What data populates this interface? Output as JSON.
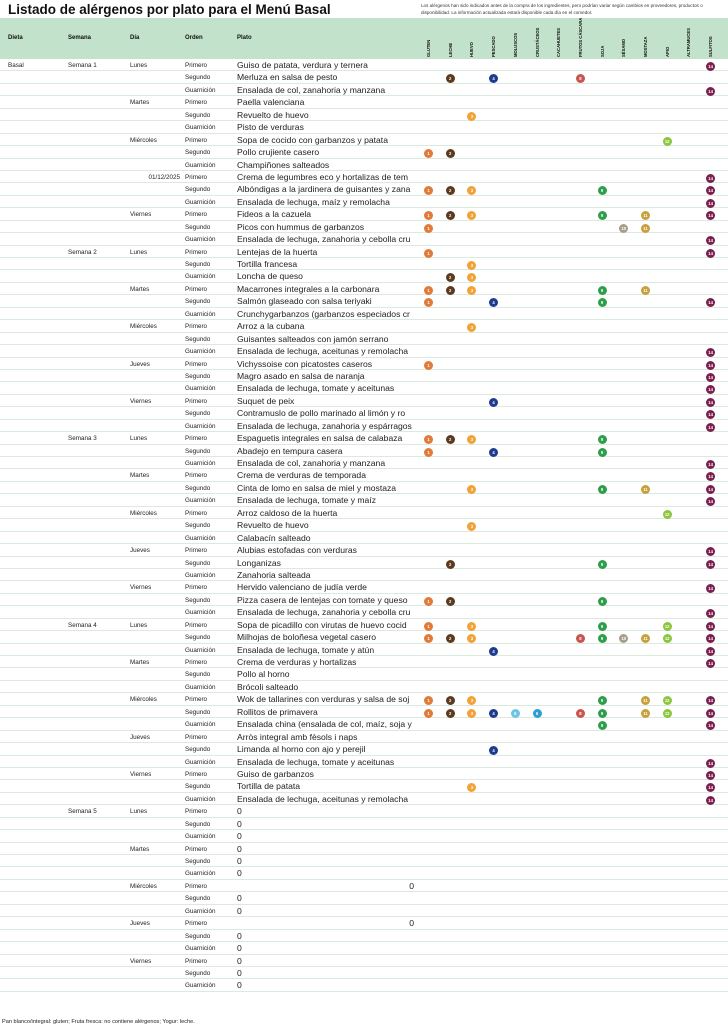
{
  "title": "Listado de alérgenos por plato para el Menú Basal",
  "note": "Los alérgenos han sido indicados antes de la compra de los ingredientes, pero podrían variar según cambios en proveedores, productos o disponibilidad. La información actualizada estará disponible cada día en el comedor.",
  "headers": {
    "dieta": "Dieta",
    "semana": "Semana",
    "dia": "Día",
    "orden": "Orden",
    "plato": "Plato"
  },
  "allergens": [
    {
      "n": 1,
      "label": "GLUTEN",
      "color": "#e07b39"
    },
    {
      "n": 2,
      "label": "LECHE",
      "color": "#5b3a1f"
    },
    {
      "n": 3,
      "label": "HUEVO",
      "color": "#f2a236"
    },
    {
      "n": 4,
      "label": "PESCADO",
      "color": "#1f3a8f"
    },
    {
      "n": 5,
      "label": "MOLUSCOS",
      "color": "#6cc5e6"
    },
    {
      "n": 6,
      "label": "CRUSTÁCEOS",
      "color": "#2a9fd8"
    },
    {
      "n": 7,
      "label": "CACAHUETES",
      "color": "#b07a44"
    },
    {
      "n": 8,
      "label": "FRUTOS CÁSCARA",
      "color": "#c9554f"
    },
    {
      "n": 9,
      "label": "SOJA",
      "color": "#2f9e4c"
    },
    {
      "n": 10,
      "label": "SÉSAMO",
      "color": "#a89f8a"
    },
    {
      "n": 11,
      "label": "MOSTAZA",
      "color": "#c7a03c"
    },
    {
      "n": 12,
      "label": "APIO",
      "color": "#8cc63f"
    },
    {
      "n": 13,
      "label": "ALTRAMUCES",
      "color": "#d18fb0"
    },
    {
      "n": 14,
      "label": "SULFITOS",
      "color": "#7a1f4e"
    }
  ],
  "dieta": "Basal",
  "rows": [
    {
      "s": "Semana 1",
      "d": "Lunes",
      "o": "Primero",
      "p": "Guiso de patata, verdura y ternera",
      "a": [
        14
      ]
    },
    {
      "o": "Segundo",
      "p": "Merluza en salsa de pesto",
      "a": [
        2,
        4,
        8
      ]
    },
    {
      "o": "Guarnición",
      "p": "Ensalada de col, zanahoria y manzana",
      "a": [
        14
      ]
    },
    {
      "d": "Martes",
      "o": "Primero",
      "p": "Paella valenciana",
      "a": []
    },
    {
      "o": "Segundo",
      "p": "Revuelto de huevo",
      "a": [
        3
      ]
    },
    {
      "o": "Guarnición",
      "p": "Pisto de verduras",
      "a": []
    },
    {
      "d": "Miércoles",
      "o": "Primero",
      "p": "Sopa de cocido con garbanzos y patata",
      "a": [
        12
      ]
    },
    {
      "o": "Segundo",
      "p": "Pollo crujiente casero",
      "a": [
        1,
        2
      ]
    },
    {
      "o": "Guarnición",
      "p": "Champiñones salteados",
      "a": []
    },
    {
      "d": "01/12/2025",
      "date": true,
      "o": "Primero",
      "p": "Crema de legumbres eco y hortalizas de tem",
      "a": [
        14
      ]
    },
    {
      "o": "Segundo",
      "p": "Albóndigas a la jardinera de guisantes y zana",
      "a": [
        1,
        2,
        3,
        9,
        14
      ]
    },
    {
      "o": "Guarnición",
      "p": "Ensalada de lechuga, maíz y remolacha",
      "a": [
        14
      ]
    },
    {
      "d": "Viernes",
      "o": "Primero",
      "p": "Fideos a la cazuela",
      "a": [
        1,
        2,
        3,
        9,
        11,
        14
      ]
    },
    {
      "o": "Segundo",
      "p": "Picos con hummus de garbanzos",
      "a": [
        1,
        10,
        11
      ]
    },
    {
      "o": "Guarnición",
      "p": "Ensalada de lechuga, zanahoria y cebolla cru",
      "a": [
        14
      ]
    },
    {
      "s": "Semana 2",
      "d": "Lunes",
      "o": "Primero",
      "p": "Lentejas de la huerta",
      "a": [
        1,
        14
      ]
    },
    {
      "o": "Segundo",
      "p": "Tortilla francesa",
      "a": [
        3
      ]
    },
    {
      "o": "Guarnición",
      "p": "Loncha de queso",
      "a": [
        2,
        3
      ]
    },
    {
      "d": "Martes",
      "o": "Primero",
      "p": "Macarrones integrales a la carbonara",
      "a": [
        1,
        2,
        3,
        9,
        11
      ]
    },
    {
      "o": "Segundo",
      "p": "Salmón glaseado con salsa teriyaki",
      "a": [
        1,
        4,
        9,
        14
      ]
    },
    {
      "o": "Guarnición",
      "p": "Crunchygarbanzos (garbanzos especiados cr",
      "a": []
    },
    {
      "d": "Miércoles",
      "o": "Primero",
      "p": "Arroz a la cubana",
      "a": [
        3
      ]
    },
    {
      "o": "Segundo",
      "p": "Guisantes salteados con jamón serrano",
      "a": []
    },
    {
      "o": "Guarnición",
      "p": "Ensalada de lechuga, aceitunas y remolacha",
      "a": [
        14
      ]
    },
    {
      "d": "Jueves",
      "o": "Primero",
      "p": "Vichyssoise con picatostes caseros",
      "a": [
        1,
        14
      ]
    },
    {
      "o": "Segundo",
      "p": "Magro asado en salsa de naranja",
      "a": [
        14
      ]
    },
    {
      "o": "Guarnición",
      "p": "Ensalada de lechuga, tomate y aceitunas",
      "a": [
        14
      ]
    },
    {
      "d": "Viernes",
      "o": "Primero",
      "p": "Suquet de peix",
      "a": [
        4,
        14
      ]
    },
    {
      "o": "Segundo",
      "p": "Contramuslo de pollo marinado al limón y ro",
      "a": [
        14
      ]
    },
    {
      "o": "Guarnición",
      "p": "Ensalada de lechuga, zanahoria y espárragos",
      "a": [
        14
      ]
    },
    {
      "s": "Semana 3",
      "d": "Lunes",
      "o": "Primero",
      "p": "Espaguetis integrales en salsa de calabaza",
      "a": [
        1,
        2,
        3,
        9
      ]
    },
    {
      "o": "Segundo",
      "p": "Abadejo en tempura casera",
      "a": [
        1,
        4,
        9
      ]
    },
    {
      "o": "Guarnición",
      "p": "Ensalada de col, zanahoria y manzana",
      "a": [
        14
      ]
    },
    {
      "d": "Martes",
      "o": "Primero",
      "p": "Crema de verduras de temporada",
      "a": [
        14
      ]
    },
    {
      "o": "Segundo",
      "p": "Cinta de lomo en salsa de miel y mostaza",
      "a": [
        3,
        9,
        11,
        14
      ]
    },
    {
      "o": "Guarnición",
      "p": "Ensalada de lechuga, tomate y maíz",
      "a": [
        14
      ]
    },
    {
      "d": "Miércoles",
      "o": "Primero",
      "p": "Arroz caldoso de la huerta",
      "a": [
        12
      ]
    },
    {
      "o": "Segundo",
      "p": "Revuelto de huevo",
      "a": [
        3
      ]
    },
    {
      "o": "Guarnición",
      "p": "Calabacín salteado",
      "a": []
    },
    {
      "d": "Jueves",
      "o": "Primero",
      "p": "Alubias estofadas con verduras",
      "a": [
        14
      ]
    },
    {
      "o": "Segundo",
      "p": "Longanizas",
      "a": [
        2,
        9,
        14
      ]
    },
    {
      "o": "Guarnición",
      "p": "Zanahoria salteada",
      "a": []
    },
    {
      "d": "Viernes",
      "o": "Primero",
      "p": "Hervido valenciano de judía verde",
      "a": [
        14
      ]
    },
    {
      "o": "Segundo",
      "p": "Pizza casera de lentejas con tomate y queso",
      "a": [
        1,
        2,
        9
      ]
    },
    {
      "o": "Guarnición",
      "p": "Ensalada de lechuga, zanahoria y cebolla cru",
      "a": [
        14
      ]
    },
    {
      "s": "Semana 4",
      "d": "Lunes",
      "o": "Primero",
      "p": "Sopa de picadillo con virutas de huevo cocid",
      "a": [
        1,
        3,
        9,
        12,
        14
      ]
    },
    {
      "o": "Segundo",
      "p": "Milhojas de boloñesa vegetal casero",
      "a": [
        1,
        2,
        3,
        8,
        9,
        10,
        11,
        12,
        14
      ]
    },
    {
      "o": "Guarnición",
      "p": "Ensalada de lechuga, tomate y atún",
      "a": [
        4,
        14
      ]
    },
    {
      "d": "Martes",
      "o": "Primero",
      "p": "Crema de verduras y hortalizas",
      "a": [
        14
      ]
    },
    {
      "o": "Segundo",
      "p": "Pollo al horno",
      "a": []
    },
    {
      "o": "Guarnición",
      "p": "Brócoli salteado",
      "a": []
    },
    {
      "d": "Miércoles",
      "o": "Primero",
      "p": "Wok de tallarines con verduras y salsa de soj",
      "a": [
        1,
        2,
        3,
        9,
        11,
        12,
        14
      ]
    },
    {
      "o": "Segundo",
      "p": "Rollitos de primavera",
      "a": [
        1,
        2,
        3,
        4,
        5,
        6,
        8,
        9,
        11,
        12,
        14
      ]
    },
    {
      "o": "Guarnición",
      "p": "Ensalada china (ensalada de col, maíz, soja y",
      "a": [
        9,
        14
      ]
    },
    {
      "d": "Jueves",
      "o": "Primero",
      "p": "Arròs integral amb fèsols i naps",
      "a": []
    },
    {
      "o": "Segundo",
      "p": "Limanda al horno con ajo y perejil",
      "a": [
        4
      ]
    },
    {
      "o": "Guarnición",
      "p": "Ensalada de lechuga, tomate y aceitunas",
      "a": [
        14
      ]
    },
    {
      "d": "Viernes",
      "o": "Primero",
      "p": "Guiso de garbanzos",
      "a": [
        14
      ]
    },
    {
      "o": "Segundo",
      "p": "Tortilla de patata",
      "a": [
        3,
        14
      ]
    },
    {
      "o": "Guarnición",
      "p": "Ensalada de lechuga, aceitunas y remolacha",
      "a": [
        14
      ]
    },
    {
      "s": "Semana 5",
      "d": "Lunes",
      "o": "Primero",
      "p": "0",
      "a": []
    },
    {
      "o": "Segundo",
      "p": "0",
      "a": []
    },
    {
      "o": "Guarnición",
      "p": "0",
      "a": []
    },
    {
      "d": "Martes",
      "o": "Primero",
      "p": "0",
      "a": []
    },
    {
      "o": "Segundo",
      "p": "0",
      "a": []
    },
    {
      "o": "Guarnición",
      "p": "0",
      "a": []
    },
    {
      "d": "Miércoles",
      "o": "Primero",
      "p": "0",
      "num": true,
      "a": []
    },
    {
      "o": "Segundo",
      "p": "0",
      "a": []
    },
    {
      "o": "Guarnición",
      "p": "0",
      "a": []
    },
    {
      "d": "Jueves",
      "o": "Primero",
      "p": "0",
      "num": true,
      "a": []
    },
    {
      "o": "Segundo",
      "p": "0",
      "a": []
    },
    {
      "o": "Guarnición",
      "p": "0",
      "a": []
    },
    {
      "d": "Viernes",
      "o": "Primero",
      "p": "0",
      "a": []
    },
    {
      "o": "Segundo",
      "p": "0",
      "a": []
    },
    {
      "o": "Guarnición",
      "p": "0",
      "a": []
    }
  ],
  "footer": "Pan blanco/integral: gluten; Fruta fresca: no contiene alérgenos; Yogur: leche."
}
